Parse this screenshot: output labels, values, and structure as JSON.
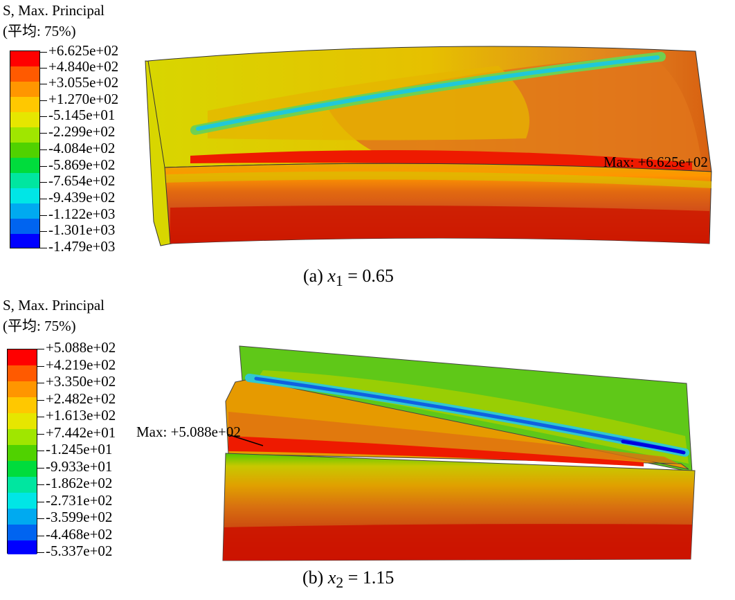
{
  "panels": [
    {
      "legend": {
        "title_line1": "S, Max. Principal",
        "title_line2": "(平均: 75%)",
        "values": [
          "+6.625e+02",
          "+4.840e+02",
          "+3.055e+02",
          "+1.270e+02",
          "-5.145e+01",
          "-2.299e+02",
          "-4.084e+02",
          "-5.869e+02",
          "-7.654e+02",
          "-9.439e+02",
          "-1.122e+03",
          "-1.301e+03",
          "-1.479e+03"
        ]
      },
      "max_label": "Max: +6.625e+02",
      "caption": {
        "label": "(a)",
        "var": "x",
        "sub": "1",
        "rhs": "= 0.65"
      }
    },
    {
      "legend": {
        "title_line1": "S, Max. Principal",
        "title_line2": "(平均: 75%)",
        "values": [
          "+5.088e+02",
          "+4.219e+02",
          "+3.350e+02",
          "+2.482e+02",
          "+1.613e+02",
          "+7.442e+01",
          "-1.245e+01",
          "-9.933e+01",
          "-1.862e+02",
          "-2.731e+02",
          "-3.599e+02",
          "-4.468e+02",
          "-5.337e+02"
        ]
      },
      "max_label": "Max: +5.088e+02",
      "caption": {
        "label": "(b)",
        "var": "x",
        "sub": "2",
        "rhs": "= 1.15"
      }
    }
  ],
  "colormap": [
    "#ff0000",
    "#ff5a00",
    "#ff9600",
    "#ffc800",
    "#e6e600",
    "#a0e600",
    "#50d200",
    "#00dc3c",
    "#00e6a0",
    "#00e6e6",
    "#00aaf0",
    "#0064f0",
    "#0000ff"
  ]
}
